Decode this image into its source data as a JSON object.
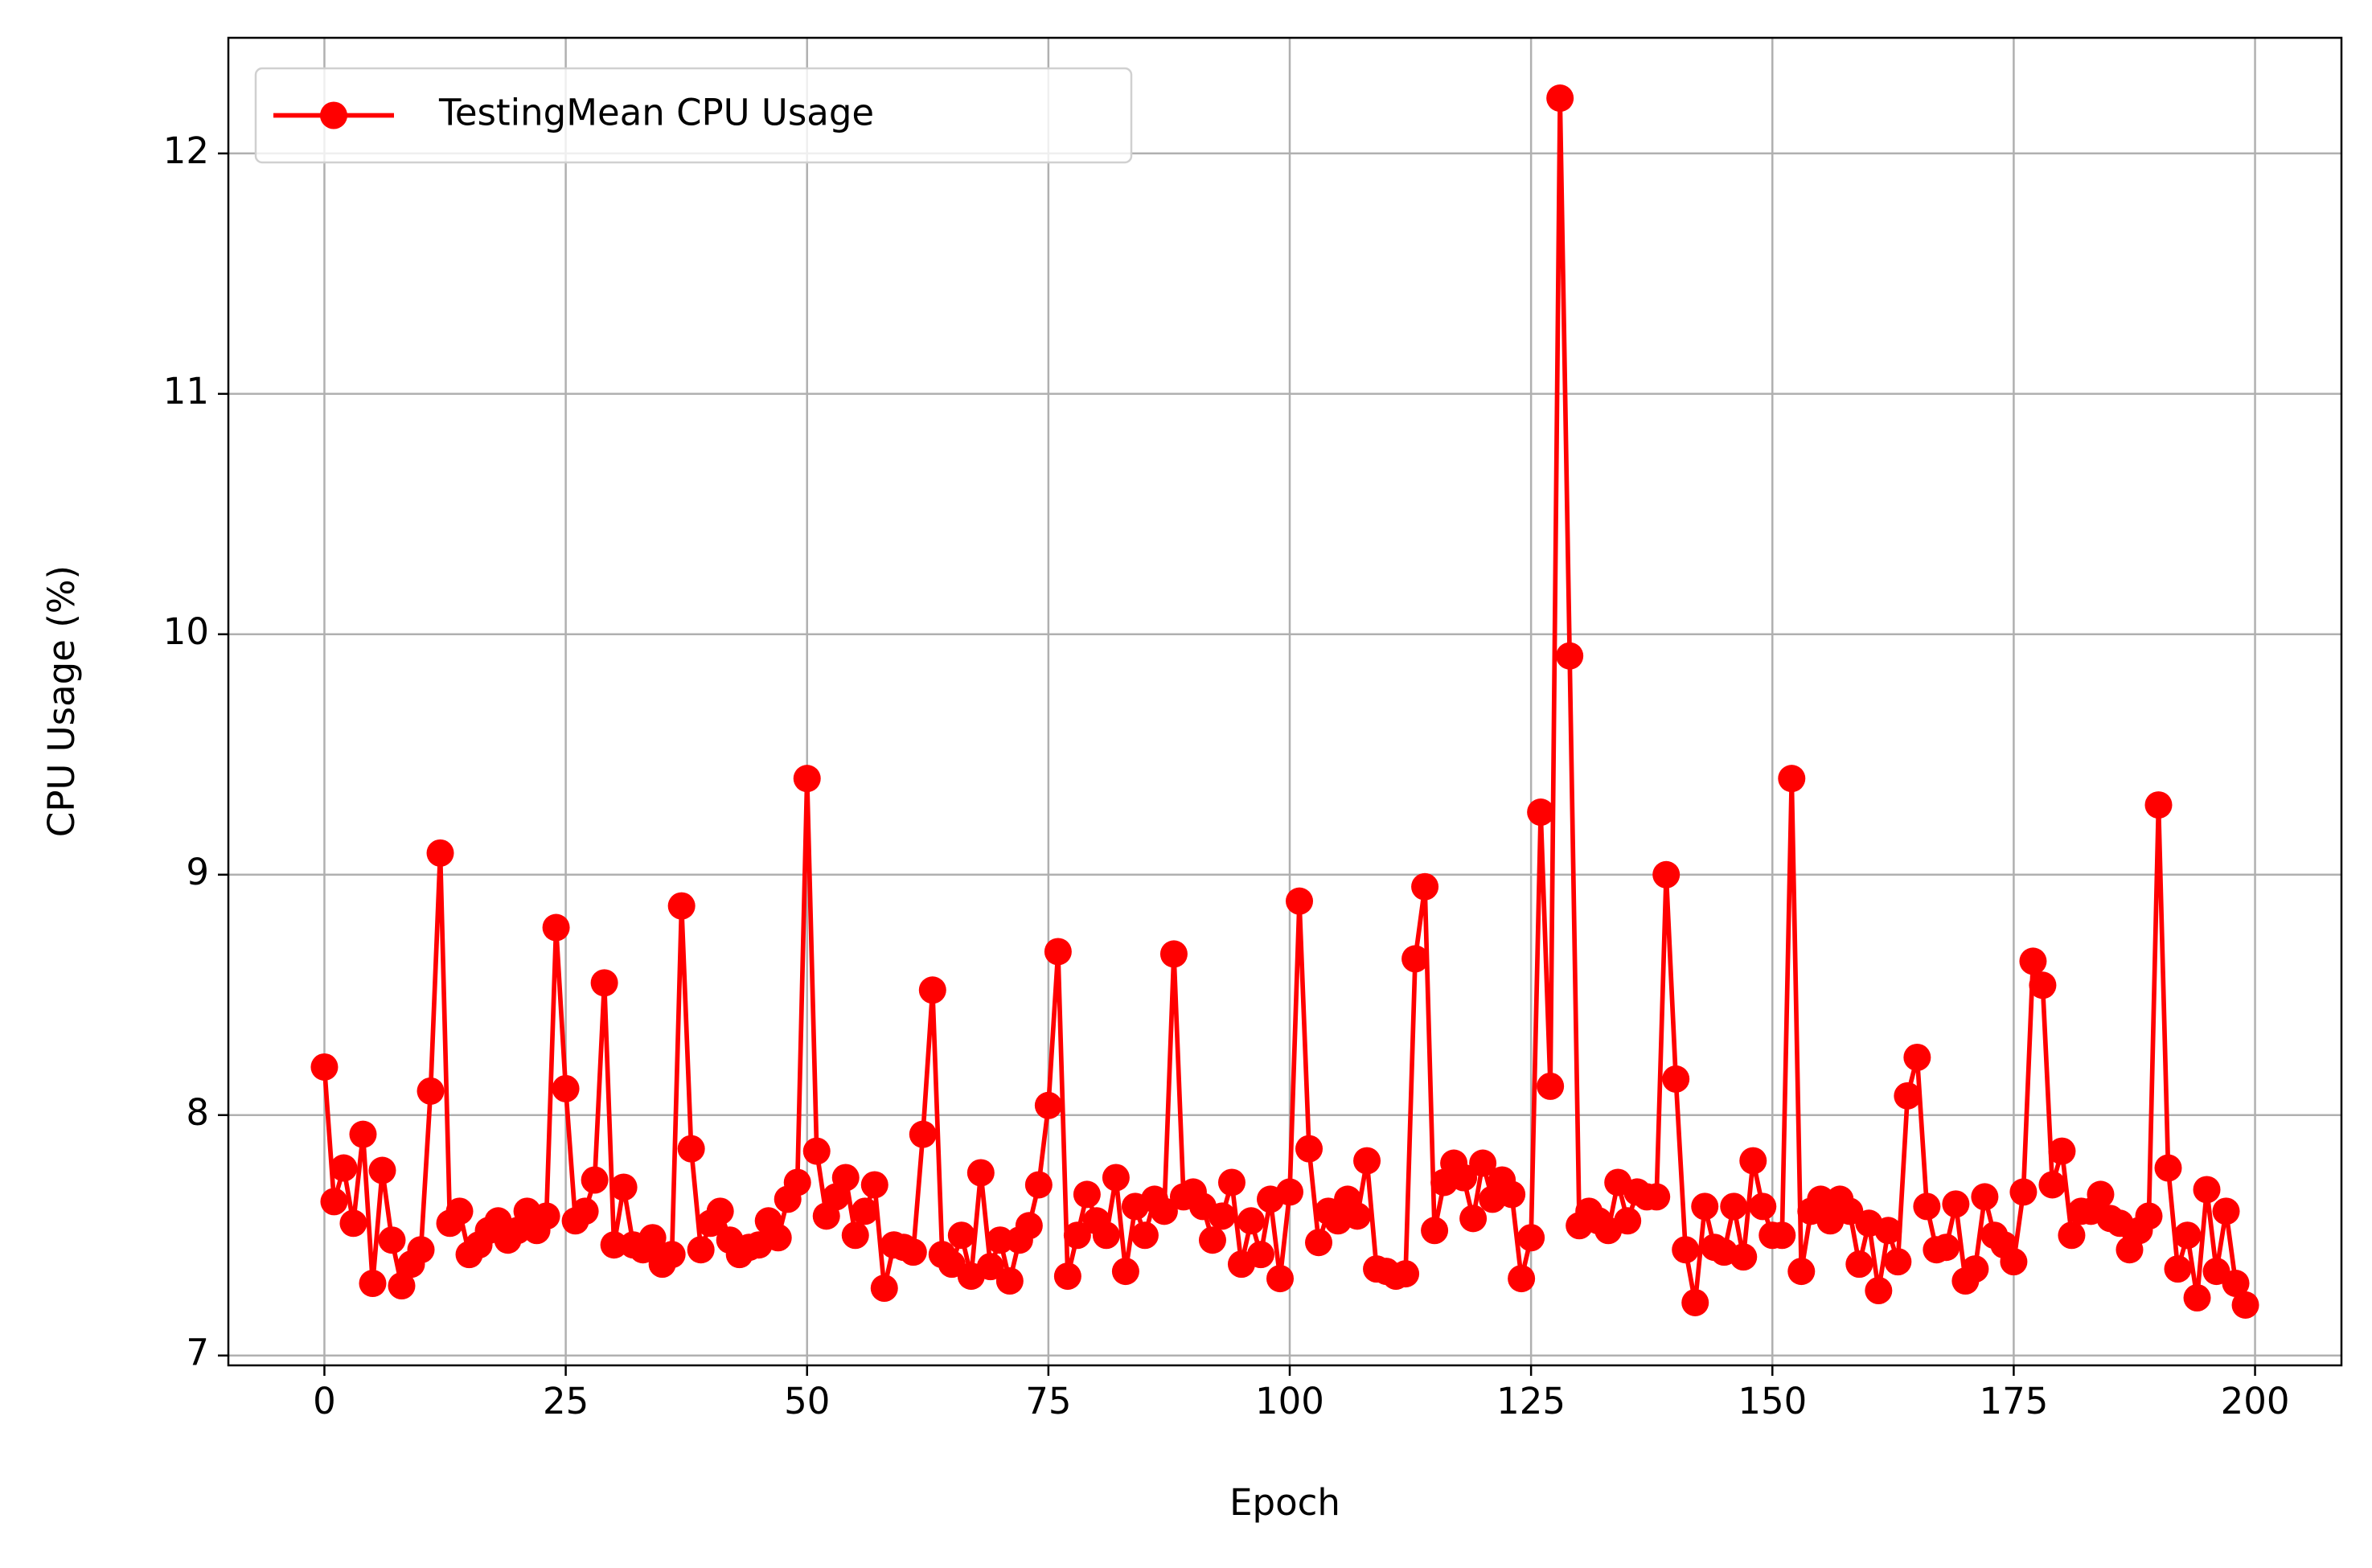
{
  "chart_data": {
    "type": "line",
    "xlabel": "Epoch",
    "ylabel": "CPU Usage (%)",
    "x": [
      0,
      1,
      2,
      3,
      4,
      5,
      6,
      7,
      8,
      9,
      10,
      11,
      12,
      13,
      14,
      15,
      16,
      17,
      18,
      19,
      20,
      21,
      22,
      23,
      24,
      25,
      26,
      27,
      28,
      29,
      30,
      31,
      32,
      33,
      34,
      35,
      36,
      37,
      38,
      39,
      40,
      41,
      42,
      43,
      44,
      45,
      46,
      47,
      48,
      49,
      50,
      51,
      52,
      53,
      54,
      55,
      56,
      57,
      58,
      59,
      60,
      61,
      62,
      63,
      64,
      65,
      66,
      67,
      68,
      69,
      70,
      71,
      72,
      73,
      74,
      75,
      76,
      77,
      78,
      79,
      80,
      81,
      82,
      83,
      84,
      85,
      86,
      87,
      88,
      89,
      90,
      91,
      92,
      93,
      94,
      95,
      96,
      97,
      98,
      99,
      100,
      101,
      102,
      103,
      104,
      105,
      106,
      107,
      108,
      109,
      110,
      111,
      112,
      113,
      114,
      115,
      116,
      117,
      118,
      119,
      120,
      121,
      122,
      123,
      124,
      125,
      126,
      127,
      128,
      129,
      130,
      131,
      132,
      133,
      134,
      135,
      136,
      137,
      138,
      139,
      140,
      141,
      142,
      143,
      144,
      145,
      146,
      147,
      148,
      149,
      150,
      151,
      152,
      153,
      154,
      155,
      156,
      157,
      158,
      159,
      160,
      161,
      162,
      163,
      164,
      165,
      166,
      167,
      168,
      169,
      170,
      171,
      172,
      173,
      174,
      175,
      176,
      177,
      178,
      179,
      180,
      181,
      182,
      183,
      184,
      185,
      186,
      187,
      188,
      189,
      190,
      191,
      192,
      193,
      194,
      195,
      196,
      197,
      198,
      199
    ],
    "series": [
      {
        "name": "TestingMean CPU Usage",
        "color": "#ff0000",
        "values": [
          8.2,
          7.64,
          7.78,
          7.55,
          7.92,
          7.3,
          7.77,
          7.48,
          7.29,
          7.38,
          7.44,
          8.1,
          9.09,
          7.55,
          7.6,
          7.42,
          7.46,
          7.52,
          7.56,
          7.48,
          7.52,
          7.6,
          7.52,
          7.58,
          8.78,
          8.11,
          7.56,
          7.6,
          7.73,
          8.55,
          7.46,
          7.7,
          7.46,
          7.44,
          7.49,
          7.38,
          7.42,
          8.87,
          7.86,
          7.44,
          7.55,
          7.6,
          7.48,
          7.42,
          7.45,
          7.46,
          7.56,
          7.49,
          7.65,
          7.72,
          9.4,
          7.85,
          7.58,
          7.66,
          7.74,
          7.5,
          7.6,
          7.71,
          7.28,
          7.46,
          7.45,
          7.43,
          7.92,
          8.52,
          7.42,
          7.38,
          7.5,
          7.33,
          7.76,
          7.37,
          7.48,
          7.31,
          7.48,
          7.54,
          7.71,
          8.04,
          8.68,
          7.33,
          7.5,
          7.67,
          7.56,
          7.5,
          7.74,
          7.35,
          7.62,
          7.5,
          7.65,
          7.6,
          8.67,
          7.66,
          7.68,
          7.62,
          7.48,
          7.58,
          7.72,
          7.38,
          7.56,
          7.42,
          7.65,
          7.32,
          7.68,
          8.89,
          7.86,
          7.47,
          7.6,
          7.56,
          7.65,
          7.58,
          7.81,
          7.36,
          7.35,
          7.33,
          7.34,
          8.65,
          8.95,
          7.52,
          7.72,
          7.8,
          7.74,
          7.57,
          7.8,
          7.65,
          7.73,
          7.67,
          7.32,
          7.49,
          9.26,
          8.12,
          12.23,
          9.91,
          7.54,
          7.6,
          7.56,
          7.52,
          7.72,
          7.56,
          7.68,
          7.66,
          7.66,
          9.0,
          8.15,
          7.44,
          7.22,
          7.62,
          7.45,
          7.43,
          7.62,
          7.41,
          7.81,
          7.62,
          7.5,
          7.5,
          9.4,
          7.35,
          7.6,
          7.65,
          7.56,
          7.65,
          7.6,
          7.38,
          7.55,
          7.27,
          7.52,
          7.39,
          8.08,
          8.24,
          7.62,
          7.44,
          7.45,
          7.63,
          7.31,
          7.36,
          7.66,
          7.5,
          7.46,
          7.39,
          7.68,
          8.64,
          8.54,
          7.71,
          7.85,
          7.5,
          7.6,
          7.6,
          7.67,
          7.57,
          7.55,
          7.44,
          7.52,
          7.58,
          9.29,
          7.78,
          7.36,
          7.5,
          7.24,
          7.69,
          7.35,
          7.6,
          7.3,
          7.21
        ]
      }
    ],
    "xlim": [
      -9.95,
      208.95
    ],
    "xticks": [
      0,
      25,
      50,
      75,
      100,
      125,
      150,
      175,
      200
    ],
    "ylim": [
      6.959,
      12.481
    ],
    "yticks": [
      7,
      8,
      9,
      10,
      11,
      12
    ],
    "grid": true,
    "legend": "upper left"
  }
}
